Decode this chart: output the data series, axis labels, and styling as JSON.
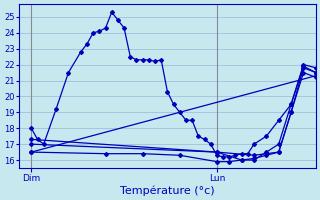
{
  "xlabel": "Température (°c)",
  "background_color": "#c8e8f0",
  "grid_color": "#a0c8dc",
  "line_color": "#0000bb",
  "xlim": [
    0,
    48
  ],
  "ylim": [
    15.5,
    25.8
  ],
  "yticks": [
    16,
    17,
    18,
    19,
    20,
    21,
    22,
    23,
    24,
    25
  ],
  "dim_x": 2,
  "lun_x": 32,
  "xtick_positions": [
    2,
    32
  ],
  "xtick_labels": [
    "Dim",
    "Lun"
  ],
  "lines": [
    {
      "x": [
        2,
        3,
        4,
        6,
        8,
        10,
        11,
        12,
        13,
        14,
        15,
        16,
        17,
        18,
        19,
        20,
        21,
        22,
        23,
        24,
        25,
        26,
        27,
        28,
        29,
        30,
        31,
        32,
        33,
        34,
        35,
        36,
        37,
        38,
        40,
        42,
        44,
        46,
        48
      ],
      "y": [
        18.0,
        17.3,
        17.0,
        19.2,
        21.5,
        22.8,
        23.3,
        24.0,
        24.1,
        24.3,
        25.3,
        24.8,
        24.3,
        22.5,
        22.3,
        22.3,
        22.3,
        22.2,
        22.3,
        20.3,
        19.5,
        19.0,
        18.5,
        18.5,
        17.5,
        17.3,
        17.0,
        16.3,
        16.2,
        16.2,
        16.3,
        16.4,
        16.4,
        17.0,
        17.5,
        18.5,
        19.5,
        21.9,
        21.5
      ]
    },
    {
      "x": [
        2,
        48
      ],
      "y": [
        16.5,
        21.3
      ]
    },
    {
      "x": [
        2,
        32,
        38,
        42,
        44,
        46,
        48
      ],
      "y": [
        17.0,
        16.5,
        16.3,
        16.5,
        19.0,
        21.8,
        21.5
      ]
    },
    {
      "x": [
        2,
        32,
        36,
        38,
        40,
        42,
        44,
        46,
        48
      ],
      "y": [
        17.3,
        16.5,
        16.0,
        16.0,
        16.5,
        17.0,
        19.5,
        22.0,
        21.8
      ]
    },
    {
      "x": [
        2,
        14,
        20,
        26,
        32,
        34,
        36,
        38,
        40,
        42,
        44,
        46,
        48
      ],
      "y": [
        16.5,
        16.4,
        16.4,
        16.3,
        15.9,
        15.9,
        16.0,
        16.1,
        16.3,
        16.5,
        19.0,
        21.5,
        21.2
      ]
    }
  ]
}
